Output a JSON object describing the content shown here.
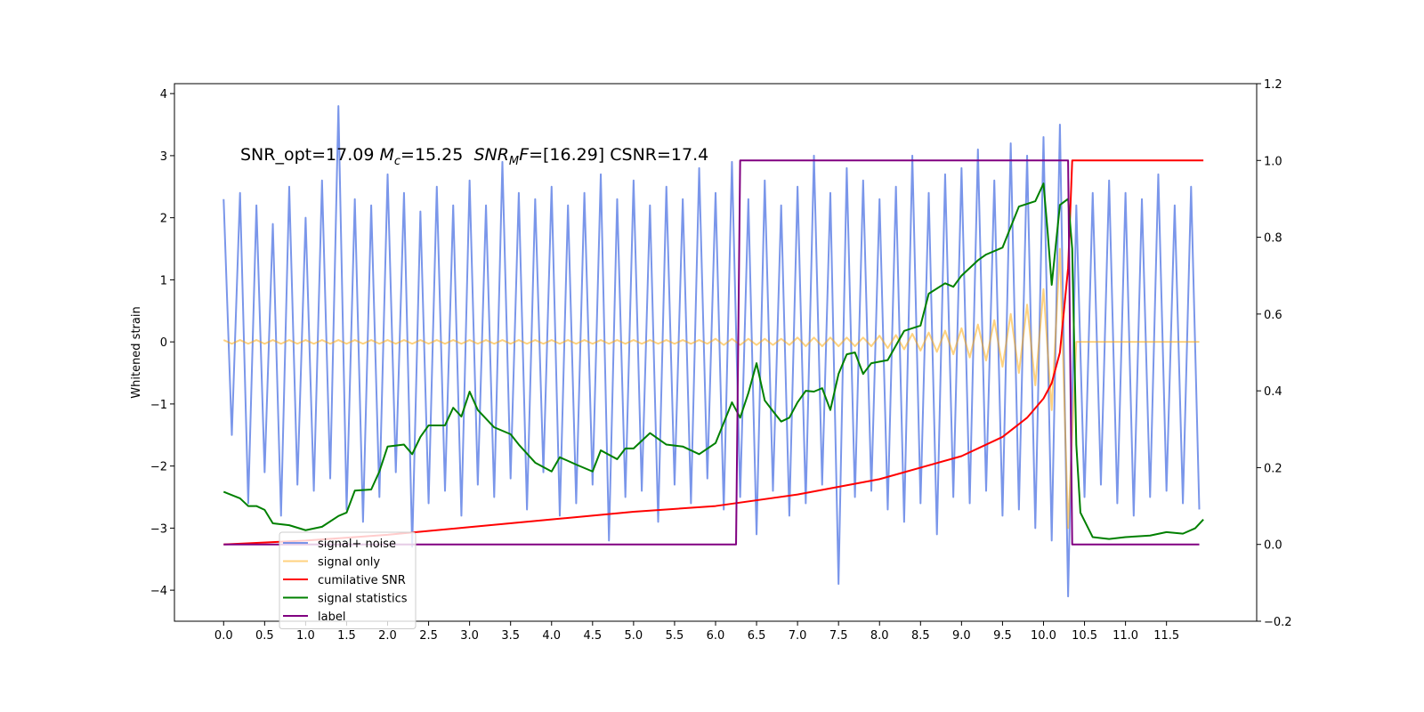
{
  "chart_data": {
    "type": "line",
    "ylabel": "Whitened strain",
    "annotation": [
      {
        "text": "SNR_opt=17.09 ",
        "style": "normal"
      },
      {
        "text": "M",
        "style": "italic"
      },
      {
        "text": "c",
        "style": "sub"
      },
      {
        "text": "=15.25  ",
        "style": "normal"
      },
      {
        "text": "SNR",
        "style": "italic"
      },
      {
        "text": "M",
        "style": "sub"
      },
      {
        "text": "F",
        "style": "italic"
      },
      {
        "text": "=[16.29] CSNR=17.4",
        "style": "normal"
      }
    ],
    "xlim": [
      -0.6,
      12.6
    ],
    "ylim": [
      -4.5,
      4.16
    ],
    "y2lim": [
      -0.2,
      1.2
    ],
    "grid": false,
    "legend": "lower left",
    "xticks": [
      {
        "value": 0,
        "label": "0.0"
      },
      0.5,
      {
        "value": 1,
        "label": "1.0"
      },
      1.5,
      {
        "value": 2,
        "label": "2.0"
      },
      2.5,
      {
        "value": 3,
        "label": "3.0"
      },
      3.5,
      {
        "value": 4,
        "label": "4.0"
      },
      4.5,
      {
        "value": 5,
        "label": "5.0"
      },
      5.5,
      {
        "value": 6,
        "label": "6.0"
      },
      6.5,
      {
        "value": 7,
        "label": "7.0"
      },
      7.5,
      {
        "value": 8,
        "label": "8.0"
      },
      8.5,
      {
        "value": 9,
        "label": "9.0"
      },
      9.5,
      {
        "value": 10,
        "label": "10.0"
      },
      10.5,
      {
        "value": 11,
        "label": "11.0"
      },
      11.5
    ],
    "yticks": [
      {
        "value": -4,
        "label": "−4"
      },
      {
        "value": -3,
        "label": "−3"
      },
      {
        "value": -2,
        "label": "−2"
      },
      {
        "value": -1,
        "label": "−1"
      },
      0,
      1,
      2,
      3,
      4
    ],
    "y2ticks": [
      {
        "value": -0.2,
        "label": "−0.2"
      },
      {
        "value": 0,
        "label": "0.0"
      },
      0.2,
      0.4,
      0.6,
      0.8,
      {
        "value": 1,
        "label": "1.0"
      },
      1.2
    ],
    "x": [
      0,
      0.1,
      0.2,
      0.3,
      0.4,
      0.5,
      0.6,
      0.7,
      0.8,
      0.9,
      1,
      1.1,
      1.2,
      1.3,
      1.4,
      1.5,
      1.6,
      1.7,
      1.8,
      1.9,
      2,
      2.1,
      2.2,
      2.3,
      2.4,
      2.5,
      2.6,
      2.7,
      2.8,
      2.9,
      3,
      3.1,
      3.2,
      3.3,
      3.4,
      3.5,
      3.6,
      3.7,
      3.8,
      3.9,
      4,
      4.1,
      4.2,
      4.3,
      4.4,
      4.5,
      4.6,
      4.7,
      4.8,
      4.9,
      5,
      5.1,
      5.2,
      5.3,
      5.4,
      5.5,
      5.6,
      5.7,
      5.8,
      5.9,
      6,
      6.1,
      6.2,
      6.3,
      6.4,
      6.5,
      6.6,
      6.7,
      6.8,
      6.9,
      7,
      7.1,
      7.2,
      7.3,
      7.4,
      7.5,
      7.6,
      7.7,
      7.8,
      7.9,
      8,
      8.1,
      8.2,
      8.3,
      8.4,
      8.5,
      8.6,
      8.7,
      8.8,
      8.9,
      9,
      9.1,
      9.2,
      9.3,
      9.4,
      9.5,
      9.6,
      9.7,
      9.8,
      9.9,
      10,
      10.1,
      10.2,
      10.3,
      10.4,
      10.5,
      10.6,
      10.7,
      10.8,
      10.9,
      11,
      11.1,
      11.2,
      11.3,
      11.4,
      11.5,
      11.6,
      11.7,
      11.8,
      11.9
    ],
    "series": [
      {
        "name": "signal+ noise",
        "color": "#4169e1",
        "alpha": 0.7,
        "values": [
          2.3,
          -1.5,
          2.4,
          -2.6,
          2.2,
          -2.1,
          1.9,
          -2.8,
          2.5,
          -2.3,
          2.0,
          -2.4,
          2.6,
          -2.2,
          3.8,
          -2.7,
          2.3,
          -2.9,
          2.2,
          -2.5,
          2.7,
          -2.1,
          2.4,
          -3.3,
          2.1,
          -2.6,
          2.5,
          -2.4,
          2.2,
          -2.8,
          2.6,
          -2.3,
          2.2,
          -2.5,
          2.9,
          -2.2,
          2.4,
          -2.7,
          2.3,
          -2.1,
          2.5,
          -2.8,
          2.2,
          -2.6,
          2.4,
          -2.3,
          2.7,
          -3.2,
          2.3,
          -2.5,
          2.6,
          -2.4,
          2.2,
          -2.9,
          2.5,
          -2.3,
          2.3,
          -2.6,
          2.8,
          -2.2,
          2.4,
          -2.7,
          2.9,
          -2.5,
          2.3,
          -3.1,
          2.6,
          -2.4,
          2.2,
          -2.8,
          2.5,
          -2.6,
          3.0,
          -2.3,
          2.4,
          -3.9,
          2.8,
          -2.5,
          2.6,
          -2.4,
          2.3,
          -2.7,
          2.5,
          -2.9,
          3.0,
          -2.6,
          2.4,
          -3.1,
          2.7,
          -2.5,
          2.8,
          -2.6,
          3.1,
          -2.4,
          2.6,
          -2.8,
          3.2,
          -2.7,
          3.0,
          -3.0,
          3.3,
          -3.2,
          3.5,
          -4.1,
          2.2,
          -2.5,
          2.4,
          -2.3,
          2.6,
          -2.6,
          2.4,
          -2.8,
          2.3,
          -2.5,
          2.7,
          -2.4,
          2.2,
          -2.6,
          2.5,
          -2.7
        ]
      },
      {
        "name": "signal only",
        "color": "#ffa500",
        "alpha": 0.5,
        "values": [
          0.03,
          -0.03,
          0.03,
          -0.03,
          0.03,
          -0.03,
          0.03,
          -0.03,
          0.03,
          -0.03,
          0.03,
          -0.03,
          0.03,
          -0.03,
          0.03,
          -0.03,
          0.03,
          -0.03,
          0.03,
          -0.03,
          0.03,
          -0.03,
          0.03,
          -0.03,
          0.03,
          -0.03,
          0.03,
          -0.03,
          0.03,
          -0.03,
          0.03,
          -0.03,
          0.03,
          -0.03,
          0.03,
          -0.03,
          0.03,
          -0.03,
          0.03,
          -0.03,
          0.03,
          -0.03,
          0.03,
          -0.03,
          0.03,
          -0.03,
          0.03,
          -0.03,
          0.03,
          -0.03,
          0.03,
          -0.03,
          0.03,
          -0.03,
          0.03,
          -0.03,
          0.03,
          -0.03,
          0.03,
          -0.03,
          0.05,
          -0.05,
          0.05,
          -0.05,
          0.05,
          -0.05,
          0.05,
          -0.05,
          0.05,
          -0.05,
          0.07,
          -0.07,
          0.07,
          -0.07,
          0.07,
          -0.07,
          0.07,
          -0.07,
          0.07,
          -0.07,
          0.1,
          -0.1,
          0.11,
          -0.12,
          0.13,
          -0.14,
          0.15,
          -0.16,
          0.18,
          -0.2,
          0.22,
          -0.25,
          0.28,
          -0.3,
          0.35,
          -0.4,
          0.45,
          -0.5,
          0.6,
          -0.7,
          0.85,
          -1.1,
          1.5,
          -3.0,
          0,
          0,
          0,
          0,
          0,
          0,
          0,
          0,
          0,
          0,
          0,
          0,
          0,
          0,
          0,
          0
        ]
      },
      {
        "name": "cumilative SNR",
        "color": "#ff0000",
        "axis": "y2",
        "x": [
          0,
          1,
          2,
          3,
          4,
          5,
          6,
          7,
          8,
          8.5,
          9,
          9.5,
          9.8,
          10,
          10.1,
          10.2,
          10.3,
          10.35,
          10.4,
          11,
          11.95
        ],
        "values": [
          0,
          0.01,
          0.025,
          0.045,
          0.065,
          0.085,
          0.1,
          0.13,
          0.17,
          0.2,
          0.23,
          0.28,
          0.33,
          0.38,
          0.42,
          0.5,
          0.72,
          1.0,
          1.0,
          1.0,
          1.0
        ]
      },
      {
        "name": "signal statistics",
        "color": "#008000",
        "axis": "y2",
        "x": [
          0,
          0.2,
          0.3,
          0.4,
          0.5,
          0.6,
          0.8,
          1.0,
          1.2,
          1.4,
          1.5,
          1.6,
          1.8,
          1.9,
          2.0,
          2.2,
          2.3,
          2.4,
          2.5,
          2.7,
          2.8,
          2.9,
          3.0,
          3.1,
          3.3,
          3.5,
          3.6,
          3.8,
          4.0,
          4.1,
          4.3,
          4.5,
          4.6,
          4.8,
          4.9,
          5.0,
          5.2,
          5.4,
          5.6,
          5.8,
          6.0,
          6.2,
          6.3,
          6.4,
          6.5,
          6.6,
          6.7,
          6.8,
          6.9,
          7.0,
          7.1,
          7.2,
          7.3,
          7.4,
          7.5,
          7.6,
          7.7,
          7.8,
          7.9,
          8.1,
          8.3,
          8.5,
          8.6,
          8.8,
          8.9,
          9.0,
          9.2,
          9.3,
          9.5,
          9.7,
          9.9,
          10.0,
          10.05,
          10.1,
          10.2,
          10.3,
          10.35,
          10.4,
          10.45,
          10.6,
          10.8,
          11.0,
          11.3,
          11.5,
          11.7,
          11.85,
          11.95
        ],
        "values": [
          0.137,
          0.12,
          0.1,
          0.1,
          0.09,
          0.055,
          0.05,
          0.037,
          0.046,
          0.074,
          0.083,
          0.14,
          0.143,
          0.19,
          0.255,
          0.26,
          0.235,
          0.28,
          0.31,
          0.31,
          0.356,
          0.333,
          0.398,
          0.35,
          0.305,
          0.287,
          0.26,
          0.213,
          0.19,
          0.227,
          0.208,
          0.19,
          0.245,
          0.222,
          0.25,
          0.25,
          0.29,
          0.26,
          0.255,
          0.235,
          0.264,
          0.37,
          0.33,
          0.394,
          0.472,
          0.375,
          0.347,
          0.32,
          0.33,
          0.37,
          0.4,
          0.398,
          0.407,
          0.35,
          0.444,
          0.495,
          0.5,
          0.444,
          0.472,
          0.48,
          0.556,
          0.57,
          0.653,
          0.68,
          0.671,
          0.7,
          0.74,
          0.755,
          0.773,
          0.88,
          0.894,
          0.94,
          0.815,
          0.676,
          0.884,
          0.9,
          0.77,
          0.26,
          0.083,
          0.019,
          0.014,
          0.019,
          0.023,
          0.032,
          0.028,
          0.042,
          0.065
        ]
      },
      {
        "name": "label",
        "color": "#800080",
        "axis": "y2",
        "x": [
          0,
          6.25,
          6.3,
          10.3,
          10.35,
          11.9
        ],
        "values": [
          0,
          0,
          1,
          1,
          0,
          0
        ]
      }
    ]
  }
}
